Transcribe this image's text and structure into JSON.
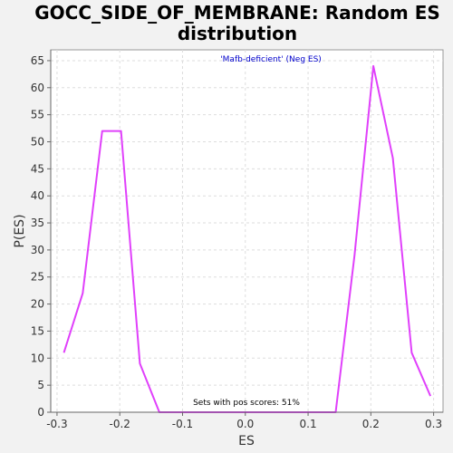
{
  "colors": {
    "background": "#f2f2f2",
    "plot_background": "#ffffff",
    "line": "#e040fb",
    "subtitle": "#0000cc",
    "grid": "#dddddd",
    "axis": "#666666"
  },
  "chart_data": {
    "type": "line",
    "title_lines": [
      "GOCC_SIDE_OF_MEMBRANE: Random ES",
      "distribution"
    ],
    "subtitle": "'Mafb-deficient' (Neg ES)",
    "annotation": "Sets with pos scores: 51%",
    "xlabel": "ES",
    "ylabel": "P(ES)",
    "xlim": [
      -0.31,
      0.315
    ],
    "ylim": [
      0,
      67
    ],
    "xticks": [
      -0.3,
      -0.2,
      -0.1,
      0.0,
      0.1,
      0.2,
      0.3
    ],
    "xtick_labels": [
      "-0.3",
      "-0.2",
      "-0.1",
      "0.0",
      "0.1",
      "0.2",
      "0.3"
    ],
    "yticks": [
      0,
      5,
      10,
      15,
      20,
      25,
      30,
      35,
      40,
      45,
      50,
      55,
      60,
      65
    ],
    "ytick_labels": [
      "0",
      "5",
      "10",
      "15",
      "20",
      "25",
      "30",
      "35",
      "40",
      "45",
      "50",
      "55",
      "60",
      "65"
    ],
    "grid": true,
    "series": [
      {
        "x": [
          -0.289,
          -0.259,
          -0.228,
          -0.198,
          -0.168,
          -0.137,
          -0.107,
          -0.077,
          -0.046,
          -0.016,
          0.015,
          0.045,
          0.075,
          0.106,
          0.144,
          0.174,
          0.204,
          0.235,
          0.265,
          0.295
        ],
        "y": [
          11,
          22,
          52,
          52,
          9,
          0,
          0,
          0,
          0,
          0,
          0,
          0,
          0,
          0,
          0,
          29,
          64,
          47,
          11,
          3
        ]
      }
    ]
  }
}
